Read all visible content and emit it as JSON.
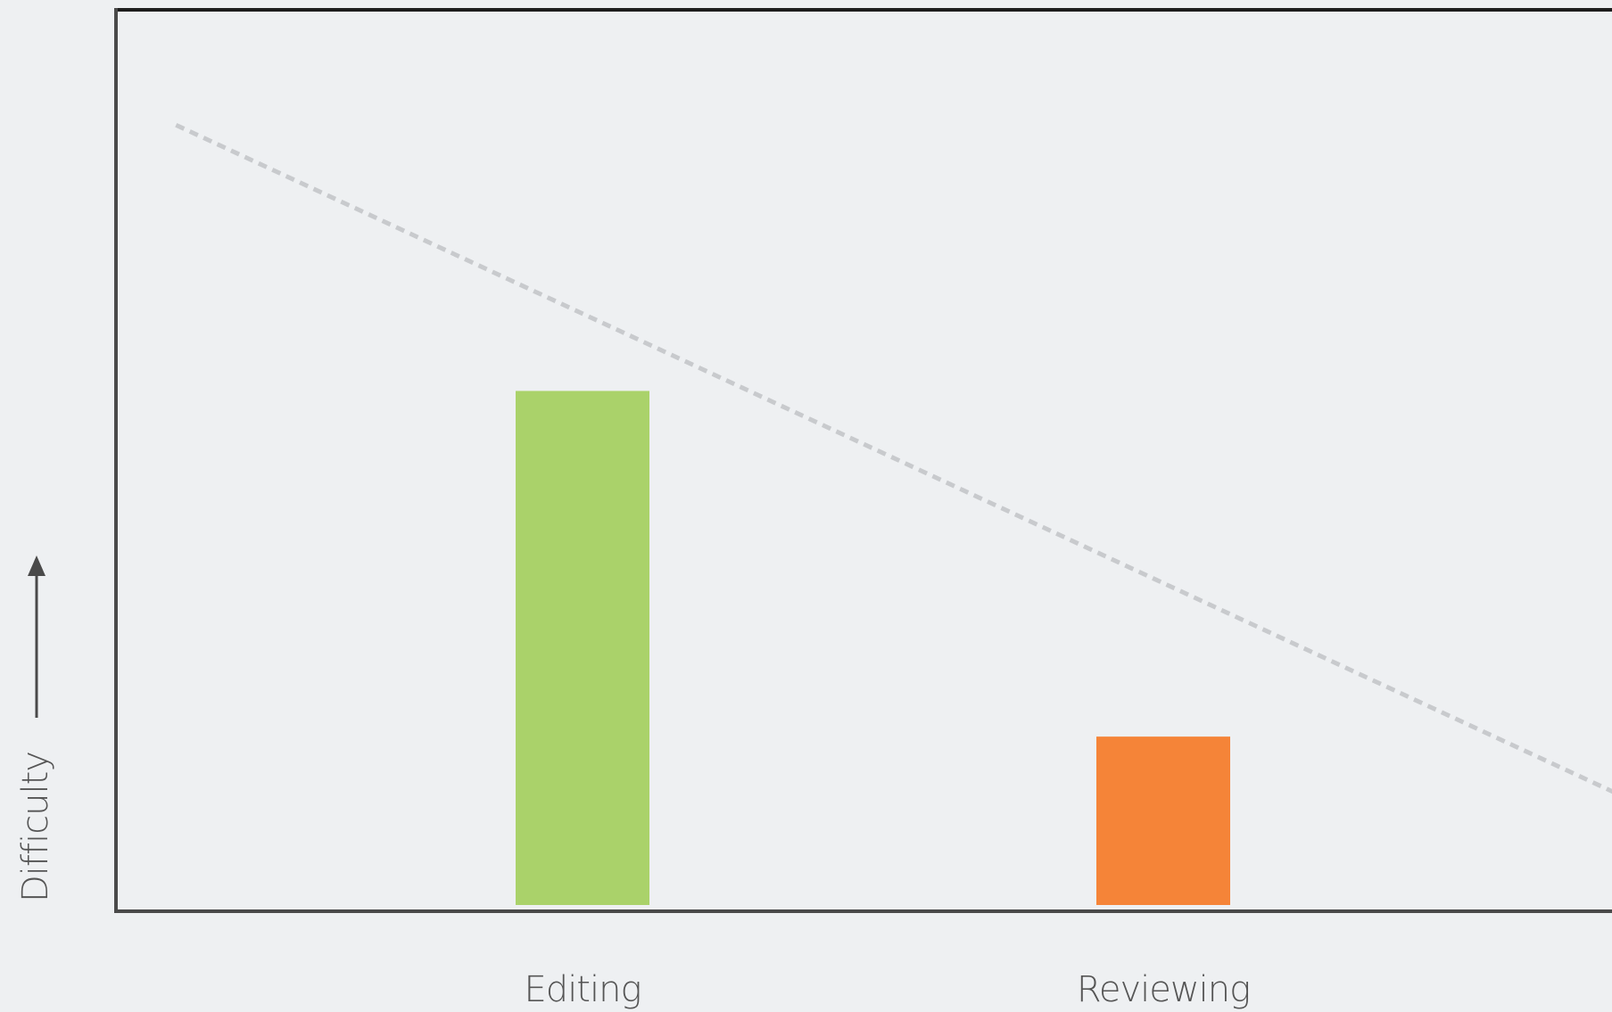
{
  "chart_data": {
    "type": "bar",
    "categories": [
      "Editing",
      "Reviewing"
    ],
    "values": [
      58,
      19
    ],
    "ylabel": "Difficulty",
    "xlabel": "",
    "ylim": [
      0,
      101
    ],
    "colors": [
      "#aad26a",
      "#f58438"
    ],
    "trendline": {
      "style": "dashed",
      "color": "#c8cacd",
      "points": [
        [
          0.3,
          88
        ],
        [
          2.8,
          12
        ]
      ]
    },
    "grid": false,
    "legend": "none"
  }
}
